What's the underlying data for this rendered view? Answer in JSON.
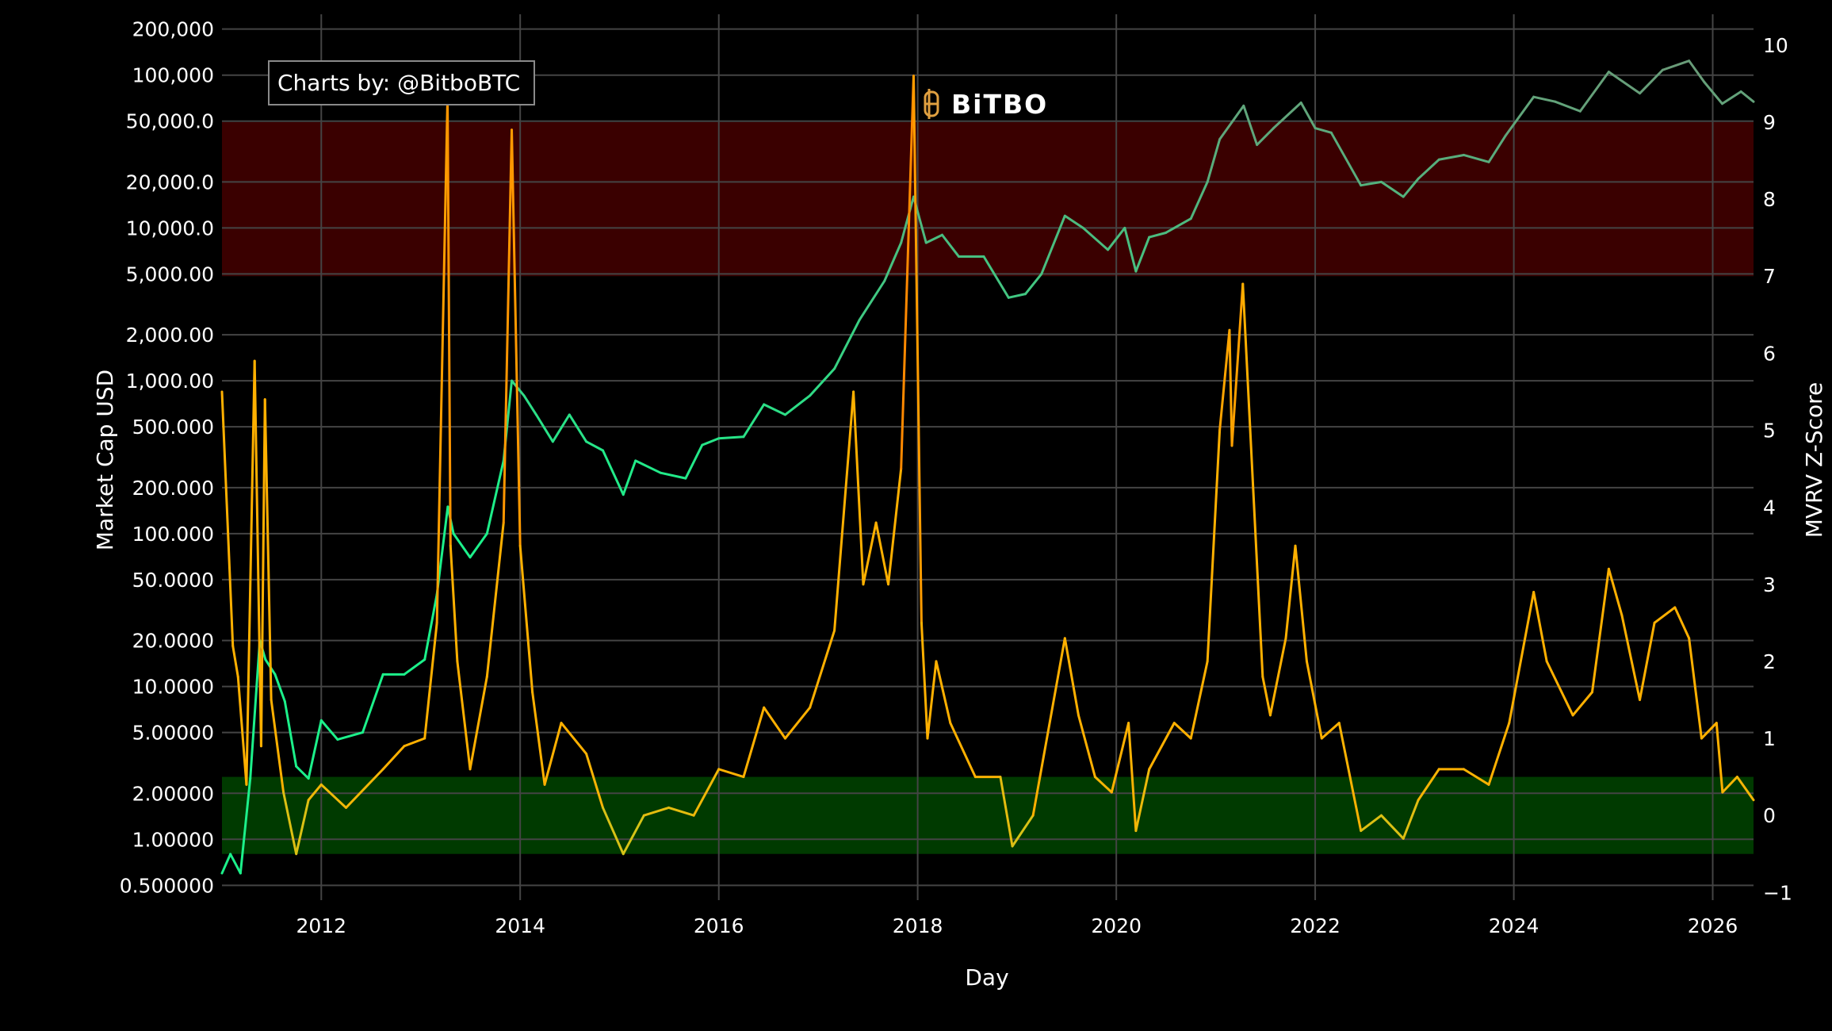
{
  "chart_data": {
    "type": "line",
    "title": "",
    "xlabel": "Day",
    "ylabel_left": "Market Cap USD",
    "ylabel_right": "MVRV Z-Score",
    "credit": "Charts by: @BitboBTC",
    "logo_text": "BiTBO",
    "x_range": [
      "2011-01-01",
      "2026-05-31"
    ],
    "x_ticks": [
      "2012",
      "2014",
      "2016",
      "2018",
      "2020",
      "2022",
      "2024",
      "2026"
    ],
    "left_axis": {
      "scale": "log",
      "range": [
        0.4,
        250000
      ],
      "ticks": [
        {
          "value": 200000,
          "label": "200,000"
        },
        {
          "value": 100000,
          "label": "100,000"
        },
        {
          "value": 50000,
          "label": "50,000.0"
        },
        {
          "value": 20000,
          "label": "20,000.0"
        },
        {
          "value": 10000,
          "label": "10,000.0"
        },
        {
          "value": 5000,
          "label": "5,000.00"
        },
        {
          "value": 2000,
          "label": "2,000.00"
        },
        {
          "value": 1000,
          "label": "1,000.00"
        },
        {
          "value": 500,
          "label": "500.000"
        },
        {
          "value": 200,
          "label": "200.000"
        },
        {
          "value": 100,
          "label": "100.000"
        },
        {
          "value": 50,
          "label": "50.0000"
        },
        {
          "value": 20,
          "label": "20.0000"
        },
        {
          "value": 10,
          "label": "10.0000"
        },
        {
          "value": 5,
          "label": "5.00000"
        },
        {
          "value": 2,
          "label": "2.00000"
        },
        {
          "value": 1,
          "label": "1.00000"
        },
        {
          "value": 0.5,
          "label": "0.500000"
        }
      ]
    },
    "right_axis": {
      "scale": "linear",
      "range": [
        -1.1,
        10.4
      ],
      "ticks": [
        {
          "value": 10,
          "label": "10"
        },
        {
          "value": 9,
          "label": "9"
        },
        {
          "value": 8,
          "label": "8"
        },
        {
          "value": 7,
          "label": "7"
        },
        {
          "value": 6,
          "label": "6"
        },
        {
          "value": 5,
          "label": "5"
        },
        {
          "value": 4,
          "label": "4"
        },
        {
          "value": 3,
          "label": "3"
        },
        {
          "value": 2,
          "label": "2"
        },
        {
          "value": 1,
          "label": "1"
        },
        {
          "value": 0,
          "label": "0"
        },
        {
          "value": -1,
          "label": "−1"
        }
      ]
    },
    "zones": [
      {
        "name": "",
        "from": 7,
        "to": 9,
        "color": "#3a0000"
      },
      {
        "name": "",
        "from": -0.5,
        "to": 0.5,
        "color": "#003a00"
      }
    ],
    "series": [
      {
        "name": "",
        "axis": "left",
        "color_low": "#1cf08a",
        "color_high": "#6a9a78",
        "points": [
          [
            "2011-01-01",
            0.6
          ],
          [
            "2011-02-01",
            0.8
          ],
          [
            "2011-03-10",
            0.6
          ],
          [
            "2011-04-15",
            2.5
          ],
          [
            "2011-05-20",
            20
          ],
          [
            "2011-06-10",
            15
          ],
          [
            "2011-07-15",
            12
          ],
          [
            "2011-08-20",
            8
          ],
          [
            "2011-10-01",
            3
          ],
          [
            "2011-11-15",
            2.5
          ],
          [
            "2012-01-01",
            6
          ],
          [
            "2012-03-01",
            4.5
          ],
          [
            "2012-06-01",
            5
          ],
          [
            "2012-08-15",
            12
          ],
          [
            "2012-11-01",
            12
          ],
          [
            "2013-01-15",
            15
          ],
          [
            "2013-03-01",
            40
          ],
          [
            "2013-04-10",
            150
          ],
          [
            "2013-05-01",
            100
          ],
          [
            "2013-07-01",
            70
          ],
          [
            "2013-09-01",
            100
          ],
          [
            "2013-11-01",
            300
          ],
          [
            "2013-12-01",
            1000
          ],
          [
            "2014-01-15",
            800
          ],
          [
            "2014-03-01",
            600
          ],
          [
            "2014-05-01",
            400
          ],
          [
            "2014-07-01",
            600
          ],
          [
            "2014-09-01",
            400
          ],
          [
            "2014-11-01",
            350
          ],
          [
            "2015-01-15",
            180
          ],
          [
            "2015-03-01",
            300
          ],
          [
            "2015-06-01",
            250
          ],
          [
            "2015-09-01",
            230
          ],
          [
            "2015-11-01",
            380
          ],
          [
            "2016-01-01",
            420
          ],
          [
            "2016-04-01",
            430
          ],
          [
            "2016-06-15",
            700
          ],
          [
            "2016-09-01",
            600
          ],
          [
            "2016-12-01",
            800
          ],
          [
            "2017-03-01",
            1200
          ],
          [
            "2017-06-01",
            2500
          ],
          [
            "2017-09-01",
            4500
          ],
          [
            "2017-11-01",
            8000
          ],
          [
            "2017-12-17",
            16000
          ],
          [
            "2018-02-01",
            8000
          ],
          [
            "2018-04-01",
            9000
          ],
          [
            "2018-06-01",
            6500
          ],
          [
            "2018-09-01",
            6500
          ],
          [
            "2018-12-01",
            3500
          ],
          [
            "2019-02-01",
            3700
          ],
          [
            "2019-04-01",
            5000
          ],
          [
            "2019-06-26",
            12000
          ],
          [
            "2019-09-01",
            10000
          ],
          [
            "2019-12-01",
            7200
          ],
          [
            "2020-02-01",
            10000
          ],
          [
            "2020-03-13",
            5200
          ],
          [
            "2020-05-01",
            8700
          ],
          [
            "2020-07-01",
            9300
          ],
          [
            "2020-10-01",
            11500
          ],
          [
            "2020-12-01",
            20000
          ],
          [
            "2021-01-15",
            38000
          ],
          [
            "2021-04-13",
            63000
          ],
          [
            "2021-06-01",
            35000
          ],
          [
            "2021-08-01",
            45000
          ],
          [
            "2021-11-10",
            66000
          ],
          [
            "2022-01-01",
            45000
          ],
          [
            "2022-03-01",
            42000
          ],
          [
            "2022-06-18",
            19000
          ],
          [
            "2022-09-01",
            20000
          ],
          [
            "2022-11-21",
            16000
          ],
          [
            "2023-01-15",
            21000
          ],
          [
            "2023-04-01",
            28000
          ],
          [
            "2023-07-01",
            30000
          ],
          [
            "2023-10-01",
            27000
          ],
          [
            "2023-12-01",
            40000
          ],
          [
            "2024-03-14",
            72000
          ],
          [
            "2024-06-01",
            67000
          ],
          [
            "2024-09-01",
            58000
          ],
          [
            "2024-12-15",
            105000
          ],
          [
            "2025-04-08",
            76000
          ],
          [
            "2025-07-01",
            108000
          ],
          [
            "2025-10-06",
            124000
          ],
          [
            "2025-12-01",
            90000
          ],
          [
            "2026-02-05",
            65000
          ],
          [
            "2026-04-15",
            78000
          ],
          [
            "2026-05-31",
            67000
          ]
        ]
      },
      {
        "name": "",
        "axis": "right",
        "color_low": "#c8c81e",
        "color_mid": "#ffb000",
        "color_high": "#ff6400",
        "points": [
          [
            "2011-01-01",
            5.5
          ],
          [
            "2011-02-10",
            2.2
          ],
          [
            "2011-03-01",
            1.8
          ],
          [
            "2011-04-01",
            0.4
          ],
          [
            "2011-05-01",
            5.9
          ],
          [
            "2011-05-25",
            0.9
          ],
          [
            "2011-06-08",
            5.4
          ],
          [
            "2011-07-01",
            1.5
          ],
          [
            "2011-08-15",
            0.3
          ],
          [
            "2011-10-01",
            -0.5
          ],
          [
            "2011-11-15",
            0.2
          ],
          [
            "2012-01-01",
            0.4
          ],
          [
            "2012-04-01",
            0.1
          ],
          [
            "2012-08-15",
            0.6
          ],
          [
            "2012-11-01",
            0.9
          ],
          [
            "2013-01-15",
            1.0
          ],
          [
            "2013-03-01",
            2.5
          ],
          [
            "2013-04-09",
            9.3
          ],
          [
            "2013-04-20",
            3.5
          ],
          [
            "2013-05-15",
            2.0
          ],
          [
            "2013-07-01",
            0.6
          ],
          [
            "2013-09-01",
            1.8
          ],
          [
            "2013-11-01",
            3.8
          ],
          [
            "2013-12-01",
            8.9
          ],
          [
            "2014-01-01",
            3.5
          ],
          [
            "2014-02-15",
            1.6
          ],
          [
            "2014-04-01",
            0.4
          ],
          [
            "2014-06-01",
            1.2
          ],
          [
            "2014-09-01",
            0.8
          ],
          [
            "2014-11-01",
            0.1
          ],
          [
            "2015-01-15",
            -0.5
          ],
          [
            "2015-04-01",
            0.0
          ],
          [
            "2015-07-01",
            0.1
          ],
          [
            "2015-10-01",
            0.0
          ],
          [
            "2016-01-01",
            0.6
          ],
          [
            "2016-04-01",
            0.5
          ],
          [
            "2016-06-15",
            1.4
          ],
          [
            "2016-09-01",
            1.0
          ],
          [
            "2016-12-01",
            1.4
          ],
          [
            "2017-03-01",
            2.4
          ],
          [
            "2017-05-10",
            5.5
          ],
          [
            "2017-06-15",
            3.0
          ],
          [
            "2017-08-01",
            3.8
          ],
          [
            "2017-09-15",
            3.0
          ],
          [
            "2017-11-01",
            4.5
          ],
          [
            "2017-12-17",
            9.6
          ],
          [
            "2018-01-15",
            2.5
          ],
          [
            "2018-02-06",
            1.0
          ],
          [
            "2018-03-10",
            2.0
          ],
          [
            "2018-05-01",
            1.2
          ],
          [
            "2018-08-01",
            0.5
          ],
          [
            "2018-11-01",
            0.5
          ],
          [
            "2018-12-15",
            -0.4
          ],
          [
            "2019-03-01",
            0.0
          ],
          [
            "2019-06-26",
            2.3
          ],
          [
            "2019-08-15",
            1.3
          ],
          [
            "2019-10-15",
            0.5
          ],
          [
            "2019-12-15",
            0.3
          ],
          [
            "2020-02-15",
            1.2
          ],
          [
            "2020-03-13",
            -0.2
          ],
          [
            "2020-05-01",
            0.6
          ],
          [
            "2020-08-01",
            1.2
          ],
          [
            "2020-10-01",
            1.0
          ],
          [
            "2020-12-01",
            2.0
          ],
          [
            "2021-01-15",
            5.0
          ],
          [
            "2021-02-20",
            6.3
          ],
          [
            "2021-03-01",
            4.8
          ],
          [
            "2021-04-10",
            6.9
          ],
          [
            "2021-06-22",
            1.8
          ],
          [
            "2021-07-20",
            1.3
          ],
          [
            "2021-09-15",
            2.3
          ],
          [
            "2021-10-20",
            3.5
          ],
          [
            "2021-12-01",
            2.0
          ],
          [
            "2022-01-25",
            1.0
          ],
          [
            "2022-03-30",
            1.2
          ],
          [
            "2022-06-18",
            -0.2
          ],
          [
            "2022-09-01",
            0.0
          ],
          [
            "2022-11-21",
            -0.3
          ],
          [
            "2023-01-15",
            0.2
          ],
          [
            "2023-04-01",
            0.6
          ],
          [
            "2023-07-01",
            0.6
          ],
          [
            "2023-10-01",
            0.4
          ],
          [
            "2023-12-15",
            1.2
          ],
          [
            "2024-03-14",
            2.9
          ],
          [
            "2024-05-01",
            2.0
          ],
          [
            "2024-08-05",
            1.3
          ],
          [
            "2024-10-15",
            1.6
          ],
          [
            "2024-12-15",
            3.2
          ],
          [
            "2025-02-01",
            2.6
          ],
          [
            "2025-04-08",
            1.5
          ],
          [
            "2025-06-01",
            2.5
          ],
          [
            "2025-08-15",
            2.7
          ],
          [
            "2025-10-06",
            2.3
          ],
          [
            "2025-11-21",
            1.0
          ],
          [
            "2026-01-15",
            1.2
          ],
          [
            "2026-02-06",
            0.3
          ],
          [
            "2026-04-01",
            0.5
          ],
          [
            "2026-05-31",
            0.2
          ]
        ]
      }
    ]
  }
}
